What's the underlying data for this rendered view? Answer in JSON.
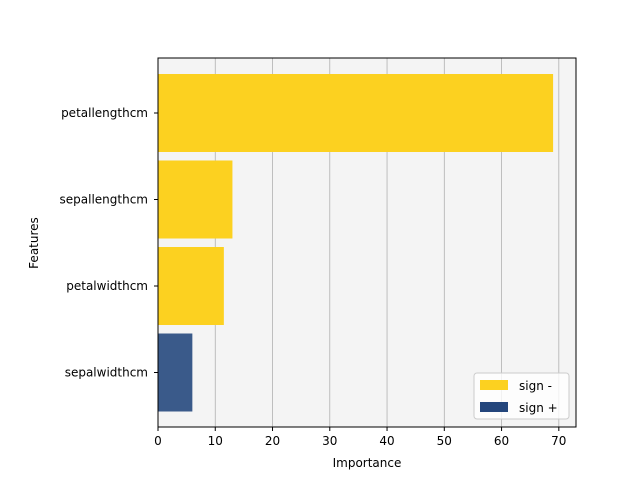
{
  "chart_data": {
    "type": "bar",
    "orientation": "horizontal",
    "title": "",
    "xlabel": "Importance",
    "ylabel": "Features",
    "xlim": [
      0,
      73
    ],
    "xticks": [
      0,
      10,
      20,
      30,
      40,
      50,
      60,
      70
    ],
    "grid": "vertical",
    "categories": [
      "petallengthcm",
      "sepallengthcm",
      "petalwidthcm",
      "sepalwidthcm"
    ],
    "values": [
      69,
      13,
      11.5,
      6
    ],
    "signs": [
      "-",
      "-",
      "-",
      "+"
    ],
    "legend": {
      "placement": "lower-right",
      "entries": [
        {
          "label": "sign -",
          "sign": "-",
          "color": "#fcd120"
        },
        {
          "label": "sign +",
          "sign": "+",
          "color": "#3a5a8a"
        }
      ]
    },
    "colors": {
      "sign_minus": "#fcd120",
      "sign_plus": "#3a5a8a",
      "plot_background": "#f4f4f4",
      "grid": "#b0b0b0"
    }
  }
}
